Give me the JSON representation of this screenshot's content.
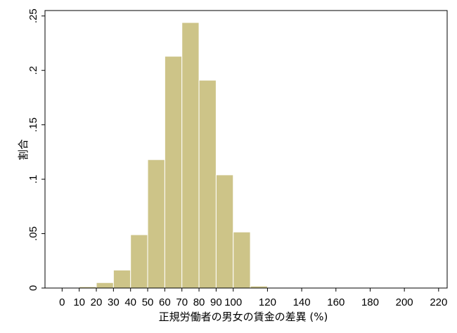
{
  "chart_data": {
    "type": "bar",
    "subtype": "histogram",
    "xlabel": "正規労働者の男女の賃金の差異 (%)",
    "ylabel": "割合",
    "xlim": [
      -10,
      225
    ],
    "ylim": [
      0,
      0.255
    ],
    "x_ticks": [
      0,
      10,
      20,
      30,
      40,
      50,
      60,
      70,
      80,
      90,
      100,
      120,
      140,
      160,
      180,
      200,
      220
    ],
    "x_tick_labels": [
      "0",
      "10",
      "20",
      "30",
      "40",
      "50",
      "60",
      "70",
      "80",
      "90",
      "100",
      "120",
      "140",
      "160",
      "180",
      "200",
      "220"
    ],
    "y_ticks": [
      0,
      0.05,
      0.1,
      0.15,
      0.2,
      0.25
    ],
    "y_tick_labels": [
      "0",
      ".05",
      ".1",
      ".15",
      ".2",
      ".25"
    ],
    "bin_width": 10,
    "bins": [
      {
        "start": 0,
        "end": 10,
        "value": 0.0003
      },
      {
        "start": 10,
        "end": 20,
        "value": 0.0012
      },
      {
        "start": 20,
        "end": 30,
        "value": 0.005
      },
      {
        "start": 30,
        "end": 40,
        "value": 0.0165
      },
      {
        "start": 40,
        "end": 50,
        "value": 0.049
      },
      {
        "start": 50,
        "end": 60,
        "value": 0.118
      },
      {
        "start": 60,
        "end": 70,
        "value": 0.213
      },
      {
        "start": 70,
        "end": 80,
        "value": 0.244
      },
      {
        "start": 80,
        "end": 90,
        "value": 0.191
      },
      {
        "start": 90,
        "end": 100,
        "value": 0.104
      },
      {
        "start": 100,
        "end": 110,
        "value": 0.0515
      },
      {
        "start": 110,
        "end": 120,
        "value": 0.0018
      },
      {
        "start": 120,
        "end": 130,
        "value": 0.0003
      },
      {
        "start": 130,
        "end": 140,
        "value": 0.0001
      },
      {
        "start": 140,
        "end": 150,
        "value": 0.0001
      },
      {
        "start": 150,
        "end": 160,
        "value": 0.0001
      },
      {
        "start": 160,
        "end": 170,
        "value": 0.0001
      },
      {
        "start": 170,
        "end": 180,
        "value": 0.0001
      },
      {
        "start": 180,
        "end": 190,
        "value": 0.0001
      },
      {
        "start": 190,
        "end": 200,
        "value": 0.0001
      },
      {
        "start": 200,
        "end": 210,
        "value": 0.0001
      },
      {
        "start": 210,
        "end": 220,
        "value": 0.0001
      }
    ],
    "bar_fill": "#cdc488",
    "bar_stroke": "#ffffff",
    "grid": false,
    "legend": "none"
  }
}
